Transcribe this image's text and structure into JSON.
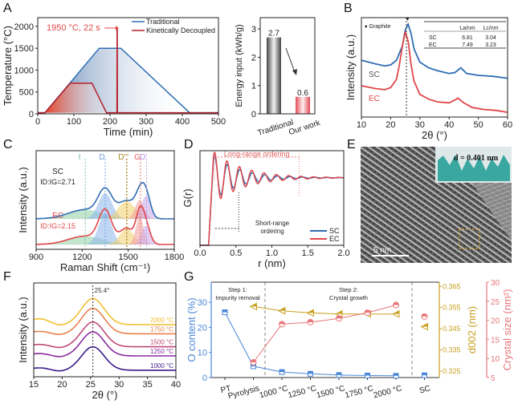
{
  "panels": {
    "A": {
      "label": "A"
    },
    "A2": {
      "label": ""
    },
    "B": {
      "label": "B"
    },
    "C": {
      "label": "C"
    },
    "D": {
      "label": "D"
    },
    "E": {
      "label": "E",
      "inset_text": "d = 0.401 nm",
      "scale_bar": "5 nm"
    },
    "F": {
      "label": "F"
    },
    "G": {
      "label": "G"
    }
  },
  "chart_data": [
    {
      "id": "A",
      "type": "line",
      "title": "",
      "xlabel": "Time (min)",
      "ylabel": "Temperature (°C)",
      "xlim": [
        0,
        500
      ],
      "ylim": [
        0,
        2200
      ],
      "xticks": [
        "0",
        "100",
        "200",
        "300",
        "400",
        "500"
      ],
      "yticks": [
        "0",
        "500",
        "1000",
        "1500",
        "2000"
      ],
      "legend": [
        "Traditional",
        "Kinetically Decoupled"
      ],
      "legend_position": "top-right",
      "annotation": "1950 °C, 22 s",
      "series": [
        {
          "name": "Traditional",
          "color": "#2e6db4",
          "x": [
            0,
            20,
            170,
            230,
            420,
            500
          ],
          "y": [
            25,
            25,
            1500,
            1500,
            25,
            25
          ]
        },
        {
          "name": "Kinetically Decoupled",
          "color": "#b5202a",
          "x": [
            0,
            20,
            90,
            150,
            190,
            219,
            219.5,
            220,
            220.5,
            500
          ],
          "y": [
            25,
            25,
            700,
            700,
            25,
            25,
            1950,
            1950,
            25,
            25
          ]
        }
      ]
    },
    {
      "id": "A2",
      "type": "bar",
      "ylabel": "Energy input (kWh/g)",
      "ylim": [
        0,
        3.4
      ],
      "yticks": [
        "0",
        "1",
        "2",
        "3"
      ],
      "categories": [
        "Traditional",
        "Our work"
      ],
      "values": [
        2.7,
        0.6
      ],
      "value_labels": [
        "2.7",
        "0.6"
      ]
    },
    {
      "id": "B",
      "type": "line",
      "xlabel": "2θ (°)",
      "ylabel": "Intensity (a.u.)",
      "xlim": [
        10,
        60
      ],
      "xticks": [
        "10",
        "20",
        "30",
        "40",
        "50",
        "60"
      ],
      "legend_marker": "♦ Graphite",
      "series_labels": [
        "SC",
        "EC"
      ],
      "series_colors": [
        "#2e6db4",
        "#e0464a"
      ],
      "table": {
        "headers": [
          "",
          "La/nm",
          "Lc/nm"
        ],
        "rows": [
          [
            "SC",
            "6.81",
            "3.04"
          ],
          [
            "EC",
            "7.49",
            "3.23"
          ]
        ]
      },
      "peak_marker_x": 25.4,
      "series": [
        {
          "name": "SC",
          "x": [
            10,
            15,
            18,
            20,
            22,
            24,
            25,
            26,
            27,
            28,
            30,
            33,
            36,
            40,
            42,
            44,
            46,
            50,
            55,
            60
          ],
          "y": [
            0.6,
            0.56,
            0.54,
            0.55,
            0.6,
            0.75,
            0.92,
            0.98,
            0.88,
            0.72,
            0.58,
            0.52,
            0.49,
            0.46,
            0.47,
            0.52,
            0.46,
            0.44,
            0.43,
            0.41
          ]
        },
        {
          "name": "EC",
          "x": [
            10,
            15,
            18,
            20,
            22,
            23,
            24,
            25,
            26,
            27,
            28,
            30,
            33,
            36,
            40,
            42,
            43,
            45,
            48,
            52,
            56,
            60
          ],
          "y": [
            0.33,
            0.3,
            0.29,
            0.31,
            0.4,
            0.55,
            0.75,
            0.9,
            0.8,
            0.55,
            0.38,
            0.24,
            0.19,
            0.16,
            0.15,
            0.18,
            0.2,
            0.15,
            0.1,
            0.08,
            0.07,
            0.05
          ]
        }
      ]
    },
    {
      "id": "C",
      "type": "area",
      "xlabel": "Raman Shift (cm⁻¹)",
      "ylabel": "Intensity (a.u.)",
      "xlim": [
        900,
        1800
      ],
      "xticks": [
        "900",
        "1200",
        "1500",
        "1800"
      ],
      "band_labels": [
        {
          "name": "I",
          "x": 1220,
          "color": "#6cc08c"
        },
        {
          "name": "D",
          "x": 1350,
          "color": "#6f9de0"
        },
        {
          "name": "D'''",
          "x": 1490,
          "color": "#a88420"
        },
        {
          "name": "G",
          "x": 1580,
          "color": "#e06060"
        },
        {
          "name": "D'",
          "x": 1620,
          "color": "#b48ee0"
        }
      ],
      "series": [
        {
          "name": "SC",
          "ratio_label": "ID:IG=2.71",
          "color": "#2e6db4",
          "bands": [
            {
              "c": 1220,
              "w": 110,
              "h": 0.22
            },
            {
              "c": 1350,
              "w": 45,
              "h": 0.62
            },
            {
              "c": 1490,
              "w": 55,
              "h": 0.42
            },
            {
              "c": 1575,
              "w": 30,
              "h": 0.45
            },
            {
              "c": 1615,
              "w": 30,
              "h": 0.55
            }
          ]
        },
        {
          "name": "EC",
          "ratio_label": "ID:IG=2.15",
          "color": "#e0464a",
          "bands": [
            {
              "c": 1220,
              "w": 110,
              "h": 0.2
            },
            {
              "c": 1350,
              "w": 42,
              "h": 0.75
            },
            {
              "c": 1490,
              "w": 45,
              "h": 0.38
            },
            {
              "c": 1575,
              "w": 25,
              "h": 0.68
            },
            {
              "c": 1615,
              "w": 28,
              "h": 0.45
            }
          ]
        }
      ]
    },
    {
      "id": "D",
      "type": "line",
      "xlabel": "r (nm)",
      "ylabel": "G(r)",
      "xlim": [
        0,
        2.0
      ],
      "xticks": [
        "0.0",
        "0.5",
        "1.0",
        "1.5",
        "2.0"
      ],
      "annotations": [
        "Long-range ordering",
        "Short-range ordering"
      ],
      "legend": [
        "SC",
        "EC"
      ],
      "legend_position": "bottom-right",
      "series": [
        {
          "name": "SC",
          "color": "#2e6db4",
          "amp": 0.85,
          "decay": 2.8,
          "period": 0.175
        },
        {
          "name": "EC",
          "color": "#e0464a",
          "amp": 1.0,
          "decay": 2.4,
          "period": 0.172
        }
      ]
    },
    {
      "id": "F",
      "type": "line",
      "xlabel": "2θ (°)",
      "ylabel": "Intensity (a.u.)",
      "xlim": [
        15,
        40
      ],
      "xticks": [
        "15",
        "20",
        "25",
        "30",
        "35",
        "40"
      ],
      "peak_annotation": "25.4°",
      "series": [
        {
          "name": "2000 °C",
          "color": "#f0c030",
          "offset": 4
        },
        {
          "name": "1750 °C",
          "color": "#e8804a",
          "offset": 3.3
        },
        {
          "name": "1500 °C",
          "color": "#c04a7a",
          "offset": 2.3
        },
        {
          "name": "1250 °C",
          "color": "#8a2aa0",
          "offset": 1.6
        },
        {
          "name": "1000 °C",
          "color": "#3a1a8a",
          "offset": 0.5
        }
      ]
    },
    {
      "id": "G",
      "type": "scatter",
      "categories": [
        "PT",
        "Pyrolysis",
        "1000 °C",
        "1250 °C",
        "1500 °C",
        "1750 °C",
        "2000 °C",
        "SC"
      ],
      "ylabel_left": "O content (%)",
      "ylabel_right1": "d002 (nm)",
      "ylabel_right2": "Crystal size (nm²)",
      "ylim_left": [
        0,
        38
      ],
      "ylim_right1": [
        0.322,
        0.367
      ],
      "ylim_right2": [
        5,
        30
      ],
      "yticks_left": [
        "0",
        "10",
        "20",
        "30"
      ],
      "yticks_right1": [
        "0.325",
        "0.335",
        "0.345",
        "0.355",
        "0.365"
      ],
      "yticks_right2": [
        "5",
        "10",
        "15",
        "20",
        "25",
        "30"
      ],
      "annotations": [
        "Step 1:",
        "Impurity removal",
        "Step 2:",
        "Crystal growth"
      ],
      "series": [
        {
          "name": "O content",
          "color": "#4a86d8",
          "axis": "left",
          "values": [
            26,
            4.5,
            2.2,
            1.5,
            1.0,
            0.8,
            0.7,
            0.9
          ]
        },
        {
          "name": "d002",
          "color": "#c8a020",
          "axis": "right1",
          "values": [
            null,
            0.3555,
            0.3535,
            0.3525,
            0.352,
            0.352,
            0.352,
            0.346
          ]
        },
        {
          "name": "Crystal size",
          "color": "#e8767a",
          "axis": "right2",
          "values": [
            null,
            9,
            19,
            19.5,
            20.5,
            22,
            24,
            21
          ]
        }
      ]
    }
  ]
}
